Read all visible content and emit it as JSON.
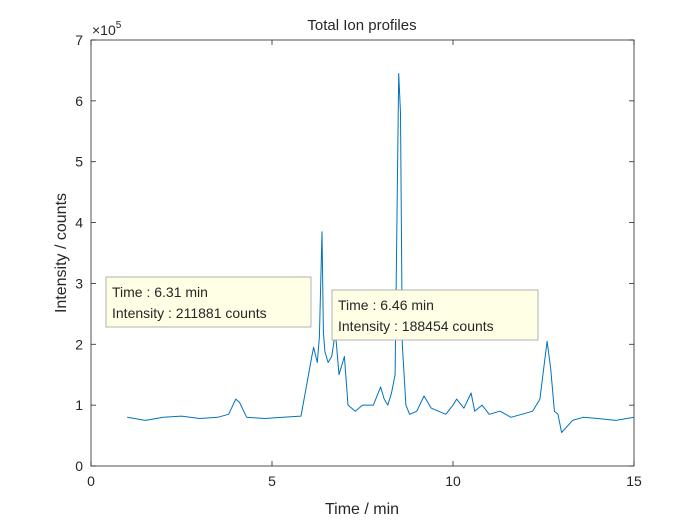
{
  "chart_data": {
    "type": "line",
    "title": "Total Ion profiles",
    "xlabel": "Time / min",
    "ylabel": "Intensity / counts",
    "exponent_label": "×10",
    "exponent_power": "5",
    "xlim": [
      0,
      15
    ],
    "ylim": [
      0,
      7
    ],
    "xticks": [
      0,
      5,
      10,
      15
    ],
    "xtick_labels": [
      "0",
      "5",
      "10",
      "15"
    ],
    "yticks": [
      0,
      1,
      2,
      3,
      4,
      5,
      6,
      7
    ],
    "ytick_labels": [
      "0",
      "1",
      "2",
      "3",
      "4",
      "5",
      "6",
      "7"
    ],
    "y_scale_note": "values in units of 1e5 counts",
    "grid": false,
    "line_color": "#0072BD",
    "series": [
      {
        "x": [
          1.0,
          1.5,
          2.0,
          2.5,
          3.0,
          3.5,
          3.8,
          4.0,
          4.1,
          4.3,
          4.8,
          5.3,
          5.8,
          6.1,
          6.15,
          6.25,
          6.31,
          6.38,
          6.42,
          6.46,
          6.55,
          6.65,
          6.75,
          6.85,
          7.0,
          7.1,
          7.3,
          7.5,
          7.8,
          8.0,
          8.1,
          8.2,
          8.3,
          8.4,
          8.5,
          8.55,
          8.6,
          8.7,
          8.8,
          9.0,
          9.2,
          9.4,
          9.6,
          9.8,
          10.0,
          10.1,
          10.3,
          10.5,
          10.6,
          10.8,
          11.0,
          11.3,
          11.6,
          11.9,
          12.2,
          12.4,
          12.6,
          12.7,
          12.8,
          12.9,
          13.0,
          13.3,
          13.6,
          14.0,
          14.5,
          15.0
        ],
        "y": [
          0.8,
          0.75,
          0.8,
          0.82,
          0.78,
          0.8,
          0.85,
          1.1,
          1.05,
          0.8,
          0.78,
          0.8,
          0.82,
          1.8,
          1.95,
          1.7,
          2.12,
          3.85,
          2.2,
          1.88,
          1.7,
          1.8,
          2.2,
          1.5,
          1.8,
          1.0,
          0.9,
          1.0,
          1.0,
          1.3,
          1.1,
          1.0,
          1.2,
          1.5,
          6.45,
          5.8,
          2.0,
          1.0,
          0.85,
          0.9,
          1.15,
          0.95,
          0.9,
          0.85,
          1.0,
          1.1,
          0.95,
          1.2,
          0.9,
          1.0,
          0.85,
          0.9,
          0.8,
          0.85,
          0.9,
          1.1,
          2.05,
          1.6,
          0.9,
          0.85,
          0.55,
          0.75,
          0.8,
          0.78,
          0.75,
          0.8
        ]
      }
    ],
    "annotations": [
      {
        "line1": "Time : 6.31 min",
        "line2": "Intensity : 211881 counts"
      },
      {
        "line1": "Time : 6.46 min",
        "line2": "Intensity : 188454 counts"
      }
    ]
  }
}
